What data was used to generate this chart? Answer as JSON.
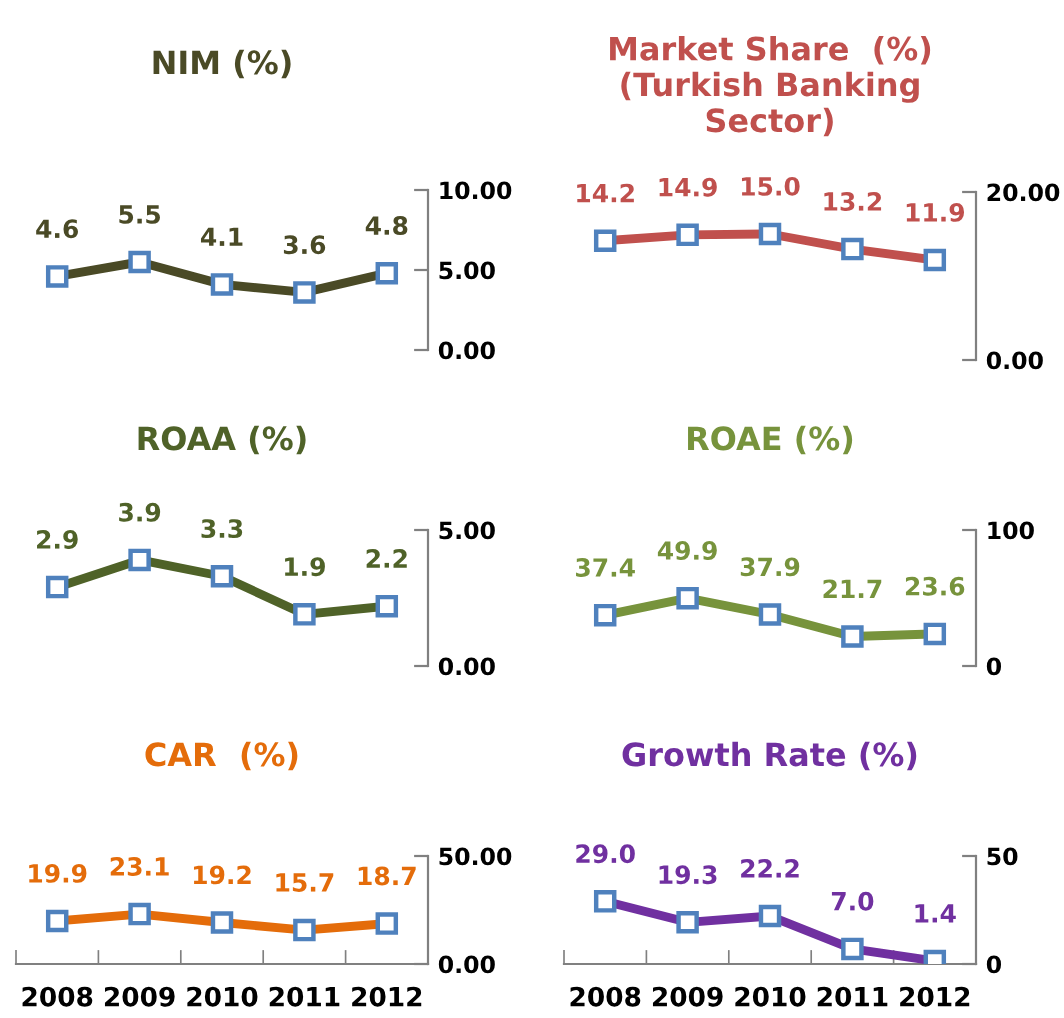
{
  "chart_data": [
    {
      "type": "line",
      "title": "NIM (%)",
      "categories": [
        "2008",
        "2009",
        "2010",
        "2011",
        "2012"
      ],
      "series": [
        {
          "color": "#4a4a26",
          "values": [
            4.6,
            5.5,
            4.1,
            3.6,
            4.8
          ],
          "value_labels": [
            "4.6",
            "5.5",
            "4.1",
            "3.6",
            "4.8"
          ]
        }
      ],
      "ylim": [
        0,
        10
      ],
      "yticks": [
        {
          "value": 0,
          "label": "0.00"
        },
        {
          "value": 5,
          "label": "5.00"
        },
        {
          "value": 10,
          "label": "10.00"
        }
      ],
      "marker": "square",
      "tick_labels": "y",
      "grid": false,
      "legend": false
    },
    {
      "type": "line",
      "title": "Market Share  (%)\n(Turkish Banking\nSector)",
      "categories": [
        "2008",
        "2009",
        "2010",
        "2011",
        "2012"
      ],
      "series": [
        {
          "color": "#c0504d",
          "values": [
            14.2,
            14.9,
            15.0,
            13.2,
            11.9
          ],
          "value_labels": [
            "14.2",
            "14.9",
            "15.0",
            "13.2",
            "11.9"
          ]
        }
      ],
      "ylim": [
        0,
        20
      ],
      "yticks": [
        {
          "value": 0,
          "label": "0.00"
        },
        {
          "value": 20,
          "label": "20.00"
        }
      ],
      "marker": "square",
      "tick_labels": "y",
      "grid": false,
      "legend": false
    },
    {
      "type": "line",
      "title": "ROAA (%)",
      "categories": [
        "2008",
        "2009",
        "2010",
        "2011",
        "2012"
      ],
      "series": [
        {
          "color": "#4f6228",
          "values": [
            2.9,
            3.9,
            3.3,
            1.9,
            2.2
          ],
          "value_labels": [
            "2.9",
            "3.9",
            "3.3",
            "1.9",
            "2.2"
          ]
        }
      ],
      "ylim": [
        0,
        5
      ],
      "yticks": [
        {
          "value": 0,
          "label": "0.00"
        },
        {
          "value": 5,
          "label": "5.00"
        }
      ],
      "marker": "square",
      "tick_labels": "y",
      "grid": false,
      "legend": false
    },
    {
      "type": "line",
      "title": "ROAE (%)",
      "categories": [
        "2008",
        "2009",
        "2010",
        "2011",
        "2012"
      ],
      "series": [
        {
          "color": "#77933c",
          "values": [
            37.4,
            49.9,
            37.9,
            21.7,
            23.6
          ],
          "value_labels": [
            "37.4",
            "49.9",
            "37.9",
            "21.7",
            "23.6"
          ]
        }
      ],
      "ylim": [
        0,
        100
      ],
      "yticks": [
        0,
        100
      ],
      "marker": "square",
      "tick_labels": "y",
      "grid": false,
      "legend": false
    },
    {
      "type": "line",
      "title": "CAR  (%)",
      "categories": [
        "2008",
        "2009",
        "2010",
        "2011",
        "2012"
      ],
      "series": [
        {
          "color": "#e46c0a",
          "values": [
            19.9,
            23.1,
            19.2,
            15.7,
            18.7
          ],
          "value_labels": [
            "19.9",
            "23.1",
            "19.2",
            "15.7",
            "18.7"
          ]
        }
      ],
      "ylim": [
        0,
        50
      ],
      "yticks": [
        {
          "value": 0,
          "label": "0.00"
        },
        {
          "value": 50,
          "label": "50.00"
        }
      ],
      "marker": "square",
      "grid": false,
      "legend": false
    },
    {
      "type": "line",
      "title": "Growth Rate (%)",
      "categories": [
        "2008",
        "2009",
        "2010",
        "2011",
        "2012"
      ],
      "series": [
        {
          "color": "#7030a0",
          "values": [
            29.0,
            19.3,
            22.2,
            7.0,
            1.4
          ],
          "value_labels": [
            "29.0",
            "19.3",
            "22.2",
            "7.0",
            "1.4"
          ]
        }
      ],
      "ylim": [
        0,
        50
      ],
      "yticks": [
        0,
        50
      ],
      "marker": "square",
      "grid": false,
      "legend": false
    }
  ]
}
